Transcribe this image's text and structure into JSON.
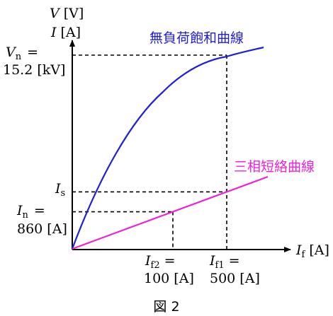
{
  "axes": {
    "y_label_1_var": "V",
    "y_label_1_unit": "[V]",
    "y_label_2_var": "I",
    "y_label_2_unit": "[A]",
    "x_label_var": "I",
    "x_label_sub": "f",
    "x_label_unit": "[A]"
  },
  "curves": {
    "no_load": {
      "label": "無負荷飽和曲線",
      "color": "#1f1fd6"
    },
    "short_circuit": {
      "label": "三相短絡曲線",
      "color": "#ee22d8"
    }
  },
  "annotations": {
    "vn_var": "V",
    "vn_sub": "n",
    "vn_eq": "=",
    "vn_value": "15.2 [kV]",
    "in_var": "I",
    "in_sub": "n",
    "in_eq": "=",
    "in_value": "860 [A]",
    "is_var": "I",
    "is_sub": "s",
    "if2_var": "I",
    "if2_sub": "f2",
    "if2_eq": "=",
    "if2_value": "100 [A]",
    "if1_var": "I",
    "if1_sub": "f1",
    "if1_eq": "=",
    "if1_value": "500 [A]"
  },
  "caption": "図 2"
}
